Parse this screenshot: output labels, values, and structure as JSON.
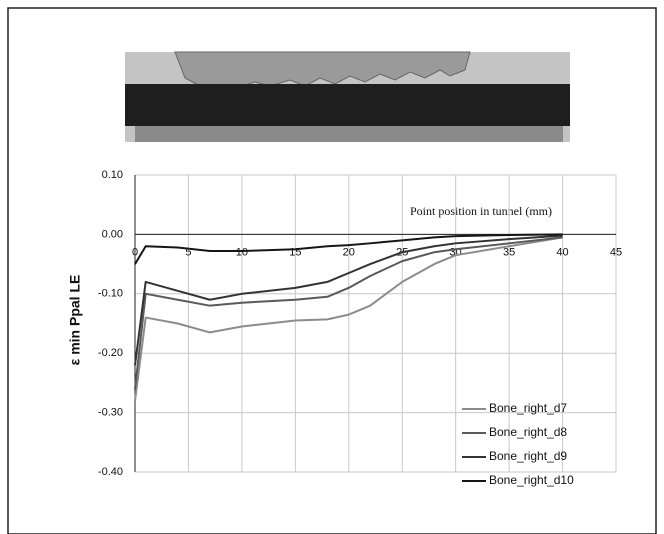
{
  "chart_data": {
    "type": "line",
    "annotation": "Point position in tunnel (mm)",
    "y_label": "ε min Ppal LE",
    "x": [
      0,
      1,
      4,
      7,
      10,
      15,
      18,
      20,
      22,
      25,
      28,
      30,
      35,
      40
    ],
    "series": [
      {
        "name": "Bone_right_d7",
        "color": "#8c8c8c",
        "values": [
          -0.28,
          -0.14,
          -0.15,
          -0.165,
          -0.155,
          -0.145,
          -0.143,
          -0.135,
          -0.12,
          -0.08,
          -0.05,
          -0.035,
          -0.02,
          -0.005
        ]
      },
      {
        "name": "Bone_right_d8",
        "color": "#5a5a5a",
        "values": [
          -0.26,
          -0.1,
          -0.11,
          -0.12,
          -0.115,
          -0.11,
          -0.105,
          -0.09,
          -0.07,
          -0.045,
          -0.03,
          -0.025,
          -0.015,
          -0.005
        ]
      },
      {
        "name": "Bone_right_d9",
        "color": "#333333",
        "values": [
          -0.22,
          -0.08,
          -0.095,
          -0.11,
          -0.1,
          -0.09,
          -0.08,
          -0.065,
          -0.05,
          -0.03,
          -0.02,
          -0.015,
          -0.008,
          -0.002
        ]
      },
      {
        "name": "Bone_right_d10",
        "color": "#161616",
        "values": [
          -0.05,
          -0.02,
          -0.022,
          -0.028,
          -0.028,
          -0.025,
          -0.02,
          -0.018,
          -0.015,
          -0.01,
          -0.005,
          -0.003,
          -0.001,
          0
        ]
      }
    ],
    "xlim": [
      0,
      45
    ],
    "xticks": [
      0,
      5,
      10,
      15,
      20,
      25,
      30,
      35,
      40,
      45
    ],
    "ylim": [
      -0.4,
      0.1
    ],
    "yticks": [
      {
        "value": 0.1,
        "label": "0.10"
      },
      {
        "value": 0,
        "label": "0.00"
      },
      {
        "value": -0.1,
        "label": "-0.10"
      },
      {
        "value": -0.2,
        "label": "-0.20"
      },
      {
        "value": -0.3,
        "label": "-0.30"
      },
      {
        "value": -0.4,
        "label": "-0.40"
      }
    ],
    "grid": true
  }
}
